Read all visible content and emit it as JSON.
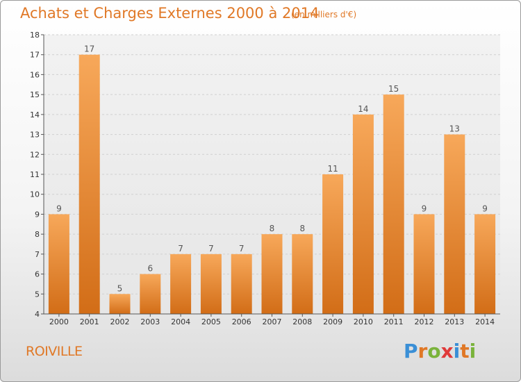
{
  "header": {
    "title": "Achats et Charges Externes 2000 à 2014",
    "subtitle": "(en milliers d'€)"
  },
  "footer": {
    "location": "ROIVILLE",
    "logo_text": "Proxiti"
  },
  "colors": {
    "accent": "#e07826",
    "bar_light": "#f7a85a",
    "bar_dark": "#d9731c",
    "logo": [
      "#3a8fd6",
      "#e07826",
      "#7ab33b",
      "#e03a3a",
      "#3a8fd6",
      "#e07826",
      "#7ab33b"
    ]
  },
  "chart_data": {
    "type": "bar",
    "title": "Achats et Charges Externes 2000 à 2014",
    "subtitle": "(en milliers d'€)",
    "categories": [
      "2000",
      "2001",
      "2002",
      "2003",
      "2004",
      "2005",
      "2006",
      "2007",
      "2008",
      "2009",
      "2010",
      "2011",
      "2012",
      "2013",
      "2014"
    ],
    "values": [
      9,
      17,
      5,
      6,
      7,
      7,
      7,
      8,
      8,
      11,
      14,
      15,
      9,
      13,
      9
    ],
    "xlabel": "",
    "ylabel": "",
    "ylim": [
      4,
      18
    ],
    "yticks": [
      4,
      5,
      6,
      7,
      8,
      9,
      10,
      11,
      12,
      13,
      14,
      15,
      16,
      17,
      18
    ],
    "grid": true
  }
}
